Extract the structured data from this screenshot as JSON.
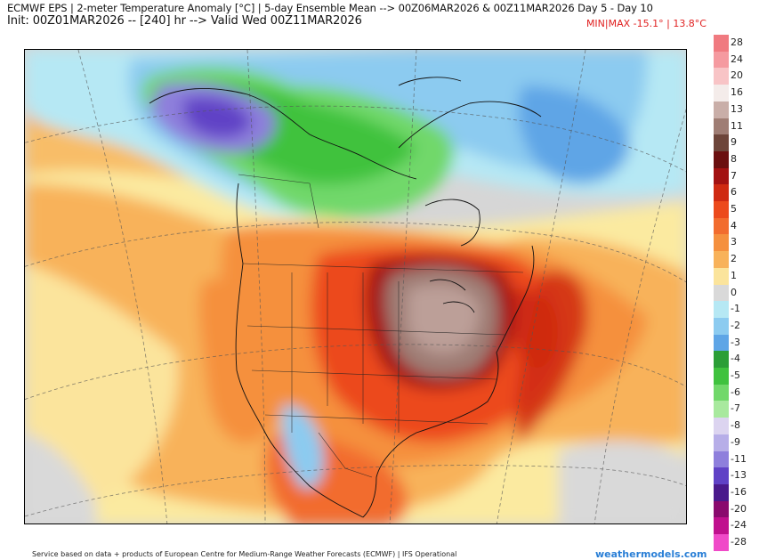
{
  "header": {
    "line1": "ECMWF EPS | 2-meter Temperature Anomaly [°C] | 5-day Ensemble Mean --> 00Z06MAR2026 & 00Z11MAR2026   Day 5 - Day 10",
    "line2": "Init: 00Z01MAR2026 -- [240] hr --> Valid Wed 00Z11MAR2026",
    "minmax": "MIN|MAX -15.1° | 13.8°C"
  },
  "colorbar": {
    "labels": [
      "28",
      "24",
      "20",
      "16",
      "13",
      "11",
      "9",
      "8",
      "7",
      "6",
      "5",
      "4",
      "3",
      "2",
      "1",
      "0",
      "-1",
      "-2",
      "-3",
      "-4",
      "-5",
      "-6",
      "-7",
      "-8",
      "-9",
      "-11",
      "-13",
      "-16",
      "-20",
      "-24",
      "-28"
    ],
    "colors": [
      "#f07a80",
      "#f59aa0",
      "#f8c4c6",
      "#f4ecea",
      "#c9aea8",
      "#9f7d74",
      "#6d453a",
      "#6b0f0f",
      "#a31212",
      "#cf2a12",
      "#ec4a1c",
      "#f26c2e",
      "#f5903e",
      "#f8b25a",
      "#fbe49c",
      "#d9d9d9",
      "#b6e8f4",
      "#8ccbf0",
      "#5ea5e6",
      "#2b9e37",
      "#3fc23e",
      "#71d86a",
      "#a8e99e",
      "#dcd4f0",
      "#b7aee8",
      "#8e7fdc",
      "#6042c6",
      "#4a1a8c",
      "#8a0a6e",
      "#c0108e",
      "#f04ac8"
    ]
  },
  "footer": {
    "text": "Service based on data + products of European Centre for Medium-Range Weather Forecasts (ECMWF) | IFS Operational",
    "brand": "weathermodels.com"
  }
}
